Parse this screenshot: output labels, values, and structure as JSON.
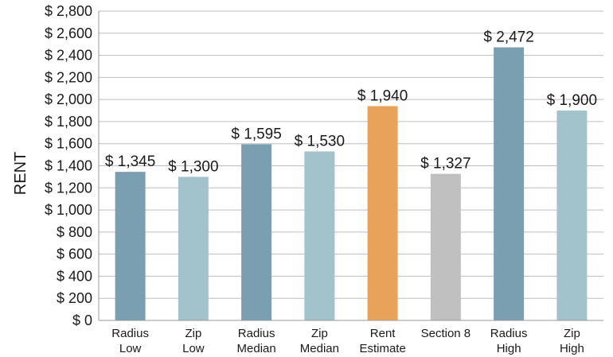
{
  "chart_data": {
    "type": "bar",
    "ylabel": "RENT",
    "ylim": [
      0,
      2800
    ],
    "ytick_step": 200,
    "ytick_labels": [
      "$ 0",
      "$ 200",
      "$ 400",
      "$ 600",
      "$ 800",
      "$ 1,000",
      "$ 1,200",
      "$ 1,400",
      "$ 1,600",
      "$ 1,800",
      "$ 2,000",
      "$ 2,200",
      "$ 2,400",
      "$ 2,600",
      "$ 2,800"
    ],
    "grid": true,
    "categories": [
      [
        "Radius",
        "Low"
      ],
      [
        "Zip",
        "Low"
      ],
      [
        "Radius",
        "Median"
      ],
      [
        "Zip",
        "Median"
      ],
      [
        "Rent",
        "Estimate"
      ],
      [
        "Section 8"
      ],
      [
        "Radius",
        "High"
      ],
      [
        "Zip",
        "High"
      ]
    ],
    "values": [
      1345,
      1300,
      1595,
      1530,
      1940,
      1327,
      2472,
      1900
    ],
    "value_labels": [
      "$ 1,345",
      "$ 1,300",
      "$ 1,595",
      "$ 1,530",
      "$ 1,940",
      "$ 1,327",
      "$ 2,472",
      "$ 1,900"
    ],
    "colors": [
      "#7a9fb0",
      "#a3c3cc",
      "#7a9fb0",
      "#a3c3cc",
      "#e8a25a",
      "#c0c0c0",
      "#7a9fb0",
      "#a3c3cc"
    ]
  }
}
